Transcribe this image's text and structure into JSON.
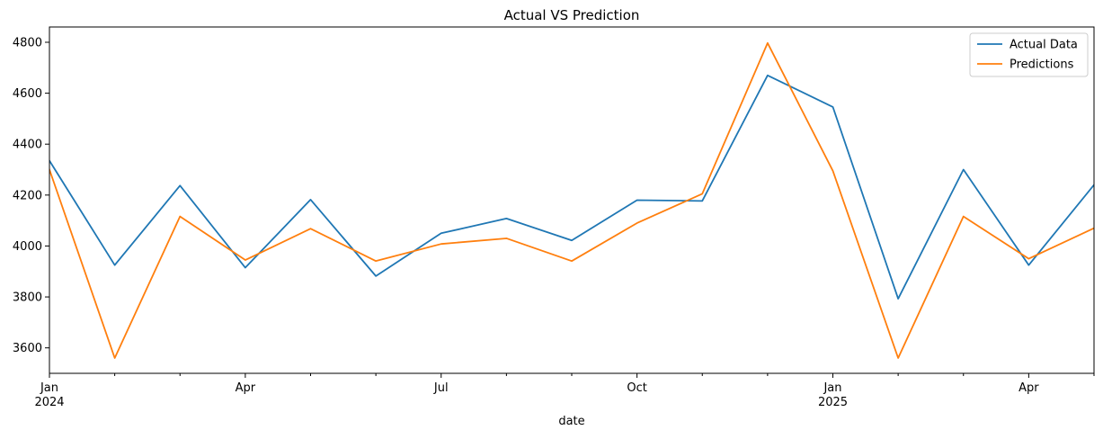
{
  "chart_data": {
    "type": "line",
    "title": "Actual VS Prediction",
    "xlabel": "date",
    "ylabel": "",
    "x": [
      "2024-01",
      "2024-02",
      "2024-03",
      "2024-04",
      "2024-05",
      "2024-06",
      "2024-07",
      "2024-08",
      "2024-09",
      "2024-10",
      "2024-11",
      "2024-12",
      "2025-01",
      "2025-02",
      "2025-03",
      "2025-04",
      "2025-05"
    ],
    "xlim": [
      "2024-01",
      "2025-05"
    ],
    "ylim": [
      3500,
      4860
    ],
    "yticks": [
      3600,
      3800,
      4000,
      4200,
      4400,
      4600,
      4800
    ],
    "xticks": [
      {
        "x": "2024-01",
        "label": "Jan",
        "sublabel": "2024"
      },
      {
        "x": "2024-04",
        "label": "Apr",
        "sublabel": ""
      },
      {
        "x": "2024-07",
        "label": "Jul",
        "sublabel": ""
      },
      {
        "x": "2024-10",
        "label": "Oct",
        "sublabel": ""
      },
      {
        "x": "2025-01",
        "label": "Jan",
        "sublabel": "2025"
      },
      {
        "x": "2025-04",
        "label": "Apr",
        "sublabel": ""
      }
    ],
    "minor_xticks": [
      "2024-02",
      "2024-03",
      "2024-05",
      "2024-06",
      "2024-08",
      "2024-09",
      "2024-11",
      "2024-12",
      "2025-02",
      "2025-03",
      "2025-05"
    ],
    "series": [
      {
        "name": "Actual Data",
        "color": "#1f77b4",
        "values": [
          4335,
          3925,
          4237,
          3915,
          4182,
          3882,
          4050,
          4108,
          4022,
          4180,
          4177,
          4670,
          4546,
          3793,
          4300,
          3925,
          4240
        ]
      },
      {
        "name": "Predictions",
        "color": "#ff7f0e",
        "values": [
          4300,
          3560,
          4116,
          3945,
          4068,
          3941,
          4008,
          4030,
          3941,
          4090,
          4205,
          4797,
          4295,
          3560,
          4116,
          3950,
          4070
        ]
      }
    ],
    "legend": "top-right",
    "grid": false
  }
}
